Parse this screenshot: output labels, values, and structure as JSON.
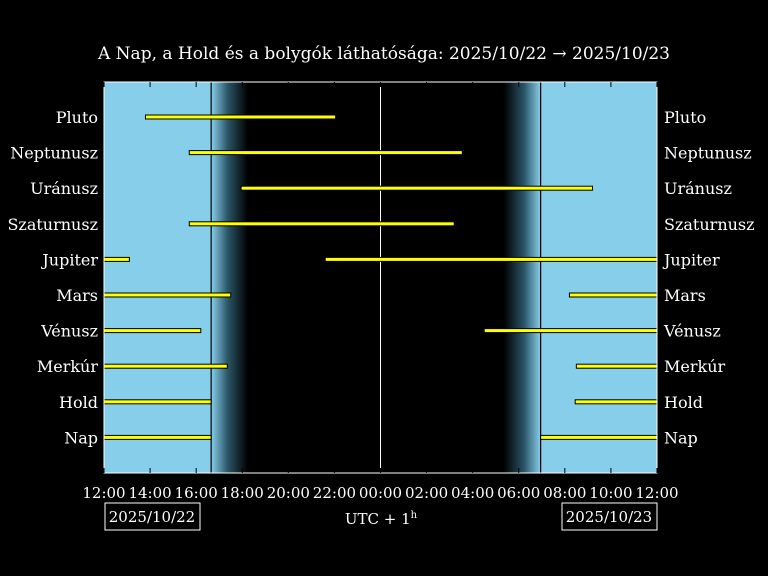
{
  "chart_data": {
    "type": "bar",
    "title": "A Nap, a Hold és a bolygók láthatósága: 2025/10/22 → 2025/10/23",
    "xlabel": "UTC + 1",
    "xlabel_sup": "h",
    "x_range_hours": [
      0,
      24
    ],
    "x_ticks": [
      "12:00",
      "14:00",
      "16:00",
      "18:00",
      "20:00",
      "22:00",
      "00:00",
      "02:00",
      "04:00",
      "06:00",
      "08:00",
      "10:00",
      "12:00"
    ],
    "date_left": "2025/10/22",
    "date_right": "2025/10/23",
    "sunset_hour": 4.65,
    "sunrise_hour": 18.95,
    "midnight_hour": 12,
    "twilight_width_hours": 1.6,
    "colors": {
      "day": "#87ceeb",
      "night": "#000000",
      "bar": "#ffff00",
      "bar_edge": "#000000",
      "line": "#ffffff"
    },
    "categories": [
      "Pluto",
      "Neptunusz",
      "Uránusz",
      "Szaturnusz",
      "Jupiter",
      "Mars",
      "Vénusz",
      "Merkúr",
      "Hold",
      "Nap"
    ],
    "series": [
      {
        "segments": [
          [
            1.8,
            10.05
          ]
        ]
      },
      {
        "segments": [
          [
            3.7,
            15.55
          ]
        ]
      },
      {
        "segments": [
          [
            5.95,
            21.2
          ]
        ]
      },
      {
        "segments": [
          [
            3.7,
            15.2
          ]
        ]
      },
      {
        "segments": [
          [
            0,
            1.1
          ],
          [
            9.6,
            24
          ]
        ]
      },
      {
        "segments": [
          [
            0,
            5.5
          ],
          [
            20.2,
            24
          ]
        ]
      },
      {
        "segments": [
          [
            0,
            4.2
          ],
          [
            16.5,
            24
          ]
        ]
      },
      {
        "segments": [
          [
            0,
            5.35
          ],
          [
            20.5,
            24
          ]
        ]
      },
      {
        "segments": [
          [
            0,
            4.65
          ],
          [
            20.45,
            24
          ]
        ]
      },
      {
        "segments": [
          [
            0,
            4.65
          ],
          [
            18.95,
            24
          ]
        ]
      }
    ]
  }
}
